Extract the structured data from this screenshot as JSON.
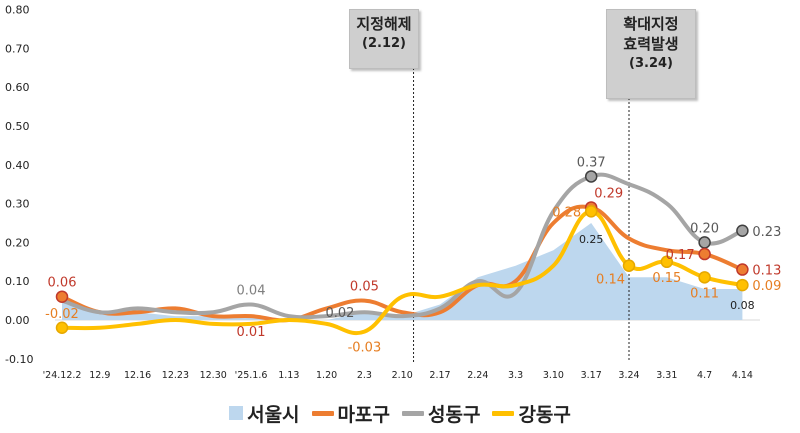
{
  "chart_data": {
    "type": "line",
    "categories": [
      "'24.12.2",
      "12.9",
      "12.16",
      "12.23",
      "12.30",
      "'25.1.6",
      "1.13",
      "1.20",
      "2.3",
      "2.10",
      "2.17",
      "2.24",
      "3.3",
      "3.10",
      "3.17",
      "3.24",
      "3.31",
      "4.7",
      "4.14"
    ],
    "ylim": [
      -0.1,
      0.8
    ],
    "yticks": [
      "-0.10",
      "0.00",
      "0.10",
      "0.20",
      "0.30",
      "0.40",
      "0.50",
      "0.60",
      "0.70",
      "0.80"
    ],
    "grid": false,
    "legend_position": "bottom",
    "series": [
      {
        "name": "서울시",
        "style": "area",
        "color": "#bdd7ee",
        "values": [
          0.05,
          0.02,
          0.02,
          0.01,
          0.01,
          0.01,
          0.0,
          0.0,
          0.02,
          0.01,
          0.04,
          0.11,
          0.14,
          0.18,
          0.25,
          0.11,
          0.11,
          0.08,
          0.08
        ]
      },
      {
        "name": "마포구",
        "style": "line",
        "color": "#ed7d31",
        "values": [
          0.06,
          0.02,
          0.02,
          0.03,
          0.01,
          0.01,
          0.0,
          0.03,
          0.05,
          0.02,
          0.02,
          0.09,
          0.1,
          0.25,
          0.29,
          0.21,
          0.18,
          0.17,
          0.13
        ]
      },
      {
        "name": "성동구",
        "style": "line",
        "color": "#a5a5a5",
        "values": [
          0.05,
          0.02,
          0.03,
          0.02,
          0.02,
          0.04,
          0.01,
          0.01,
          0.02,
          0.01,
          0.03,
          0.1,
          0.07,
          0.28,
          0.37,
          0.35,
          0.3,
          0.2,
          0.23
        ]
      },
      {
        "name": "강동구",
        "style": "line",
        "color": "#ffc000",
        "values": [
          -0.02,
          -0.02,
          -0.01,
          0.0,
          -0.01,
          -0.01,
          0.0,
          -0.01,
          -0.03,
          0.06,
          0.06,
          0.09,
          0.09,
          0.14,
          0.28,
          0.14,
          0.15,
          0.11,
          0.09
        ]
      }
    ],
    "data_labels": [
      {
        "text": "0.06",
        "series": "마포구",
        "index": 0,
        "pos": "above",
        "color": "#c0392b"
      },
      {
        "text": "-0.02",
        "series": "강동구",
        "index": 0,
        "pos": "above",
        "color": "#e67e22"
      },
      {
        "text": "0.04",
        "series": "성동구",
        "index": 5,
        "pos": "above",
        "color": "#7f7f7f"
      },
      {
        "text": "0.01",
        "series": "마포구",
        "index": 5,
        "pos": "below",
        "color": "#c0392b"
      },
      {
        "text": "0.05",
        "series": "마포구",
        "index": 8,
        "pos": "above",
        "color": "#c0392b"
      },
      {
        "text": "0.02",
        "series": "성동구",
        "index": 8,
        "pos": "left",
        "color": "#595959"
      },
      {
        "text": "-0.03",
        "series": "강동구",
        "index": 8,
        "pos": "below",
        "color": "#e67e22"
      },
      {
        "text": "0.37",
        "series": "성동구",
        "index": 14,
        "pos": "above",
        "color": "#595959"
      },
      {
        "text": "0.29",
        "series": "마포구",
        "index": 14,
        "pos": "above-right",
        "color": "#c0392b"
      },
      {
        "text": "0.28",
        "series": "강동구",
        "index": 14,
        "pos": "left",
        "color": "#e67e22"
      },
      {
        "text": "0.25",
        "series": "서울시",
        "index": 14,
        "pos": "below",
        "color": "#222222"
      },
      {
        "text": "0.14",
        "series": "강동구",
        "index": 15,
        "pos": "below-left",
        "color": "#e67e22"
      },
      {
        "text": "0.15",
        "series": "강동구",
        "index": 16,
        "pos": "below",
        "color": "#e67e22"
      },
      {
        "text": "0.20",
        "series": "성동구",
        "index": 17,
        "pos": "above",
        "color": "#595959"
      },
      {
        "text": "0.17",
        "series": "마포구",
        "index": 17,
        "pos": "left",
        "color": "#c0392b"
      },
      {
        "text": "0.11",
        "series": "강동구",
        "index": 17,
        "pos": "below",
        "color": "#e67e22"
      },
      {
        "text": "0.23",
        "series": "성동구",
        "index": 18,
        "pos": "right",
        "color": "#595959"
      },
      {
        "text": "0.13",
        "series": "마포구",
        "index": 18,
        "pos": "right",
        "color": "#c0392b"
      },
      {
        "text": "0.09",
        "series": "강동구",
        "index": 18,
        "pos": "right",
        "color": "#e67e22"
      },
      {
        "text": "0.08",
        "series": "서울시",
        "index": 18,
        "pos": "below",
        "color": "#222222"
      }
    ],
    "markers": [
      {
        "series": "마포구",
        "index": 0
      },
      {
        "series": "강동구",
        "index": 0
      },
      {
        "series": "성동구",
        "index": 14
      },
      {
        "series": "마포구",
        "index": 14
      },
      {
        "series": "강동구",
        "index": 14
      },
      {
        "series": "강동구",
        "index": 15
      },
      {
        "series": "강동구",
        "index": 16
      },
      {
        "series": "성동구",
        "index": 17
      },
      {
        "series": "마포구",
        "index": 17
      },
      {
        "series": "강동구",
        "index": 17
      },
      {
        "series": "성동구",
        "index": 18
      },
      {
        "series": "마포구",
        "index": 18
      },
      {
        "series": "강동구",
        "index": 18
      }
    ],
    "annotations": [
      {
        "line1": "지정해제",
        "line2": "(2.12)",
        "x_between": [
          "2.10",
          "2.17"
        ],
        "fraction": 0.3
      },
      {
        "line1": "확대지정",
        "line1b": "효력발생",
        "line2": "(3.24)",
        "x_between": [
          "3.24",
          "3.24"
        ],
        "fraction": 0
      }
    ]
  }
}
